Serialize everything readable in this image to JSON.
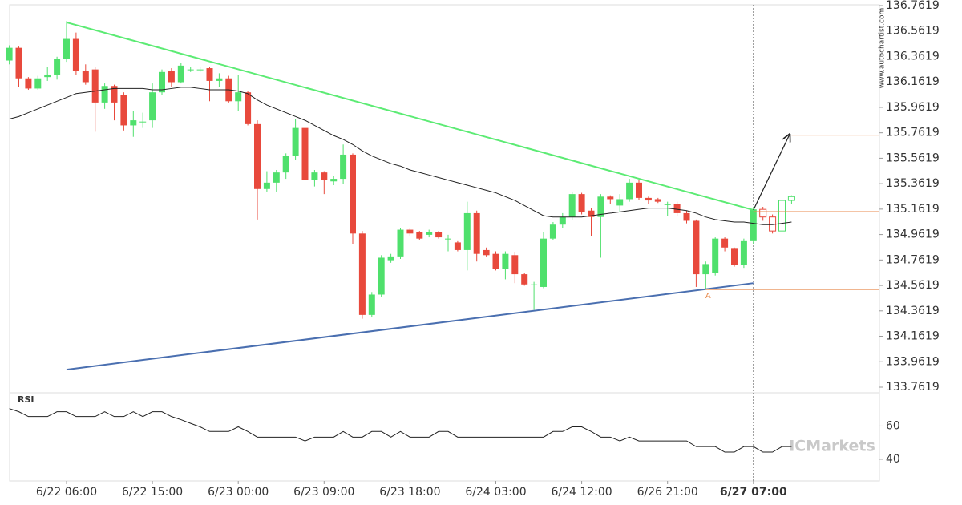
{
  "chart_data": [
    {
      "type": "candlestick",
      "categories": [
        null,
        null,
        null,
        null,
        null,
        null,
        "6/22 06:00",
        null,
        null,
        null,
        null,
        null,
        null,
        null,
        null,
        "6/22 15:00",
        null,
        null,
        null,
        null,
        null,
        null,
        null,
        null,
        "6/23 00:00",
        null,
        null,
        null,
        null,
        null,
        null,
        null,
        null,
        "6/23 09:00",
        null,
        null,
        null,
        null,
        null,
        null,
        null,
        null,
        "6/23 18:00",
        null,
        null,
        null,
        null,
        null,
        null,
        null,
        null,
        "6/24 03:00",
        null,
        null,
        null,
        null,
        null,
        null,
        null,
        null,
        "6/24 12:00",
        null,
        null,
        null,
        null,
        null,
        null,
        null,
        null,
        "6/26 21:00",
        null,
        null,
        null,
        null,
        null,
        null,
        null,
        null,
        "6/27 07:00",
        null,
        null,
        null,
        null
      ],
      "highlight_label_index": 78,
      "open": [
        136.33,
        136.43,
        136.19,
        136.11,
        136.2,
        136.22,
        136.34,
        136.5,
        136.25,
        136.26,
        136.0,
        136.13,
        136.06,
        135.82,
        135.85,
        135.86,
        136.08,
        136.25,
        136.16,
        136.26,
        136.26,
        136.27,
        136.17,
        136.19,
        136.01,
        136.08,
        135.83,
        135.32,
        135.37,
        135.45,
        135.58,
        135.8,
        135.39,
        135.45,
        135.38,
        135.4,
        135.59,
        134.97,
        134.33,
        134.49,
        134.76,
        134.79,
        135.0,
        134.98,
        134.96,
        134.98,
        134.93,
        134.9,
        134.84,
        135.13,
        134.84,
        134.81,
        134.69,
        134.8,
        134.65,
        134.57,
        134.55,
        134.93,
        135.04,
        135.1,
        135.28,
        135.15,
        135.1,
        135.26,
        135.19,
        135.24,
        135.37,
        135.25,
        135.24,
        135.2,
        135.2,
        135.13,
        135.07,
        134.65,
        134.66,
        134.93,
        134.85,
        134.72,
        134.91,
        135.16,
        135.1,
        134.99,
        135.23
      ],
      "high": [
        136.45,
        136.44,
        136.2,
        136.21,
        136.28,
        136.36,
        136.64,
        136.55,
        136.3,
        136.28,
        136.15,
        136.14,
        136.08,
        135.93,
        135.92,
        136.15,
        136.26,
        136.27,
        136.31,
        136.28,
        136.28,
        136.28,
        136.23,
        136.21,
        136.22,
        136.09,
        135.86,
        135.46,
        135.47,
        135.6,
        135.87,
        135.83,
        135.47,
        135.46,
        135.42,
        135.67,
        135.6,
        134.99,
        134.51,
        134.8,
        134.81,
        135.01,
        135.01,
        134.99,
        135.0,
        134.99,
        134.96,
        134.91,
        135.22,
        135.15,
        134.86,
        134.83,
        134.83,
        134.82,
        134.66,
        134.59,
        134.98,
        135.06,
        135.13,
        135.3,
        135.29,
        135.17,
        135.28,
        135.27,
        135.28,
        135.4,
        135.39,
        135.26,
        135.25,
        135.22,
        135.22,
        135.15,
        135.08,
        134.75,
        134.94,
        134.94,
        134.86,
        134.93,
        135.18,
        135.18,
        135.12,
        135.26,
        135.27
      ],
      "low": [
        136.3,
        136.12,
        136.1,
        136.1,
        136.17,
        136.18,
        136.32,
        136.22,
        136.14,
        135.77,
        135.95,
        135.86,
        135.78,
        135.73,
        135.8,
        135.8,
        136.06,
        136.12,
        136.15,
        136.24,
        136.24,
        136.01,
        136.12,
        136.0,
        135.93,
        135.82,
        135.08,
        135.3,
        135.3,
        135.4,
        135.55,
        135.37,
        135.34,
        135.28,
        135.35,
        135.36,
        134.89,
        134.3,
        134.31,
        134.47,
        134.74,
        134.77,
        134.95,
        134.92,
        134.94,
        134.93,
        134.83,
        134.83,
        134.68,
        134.75,
        134.79,
        134.68,
        134.61,
        134.58,
        134.56,
        134.37,
        134.54,
        134.92,
        135.01,
        135.08,
        135.12,
        134.95,
        134.78,
        135.2,
        135.14,
        135.22,
        135.23,
        135.2,
        135.21,
        135.11,
        135.11,
        135.05,
        134.55,
        134.53,
        134.64,
        134.83,
        134.71,
        134.7,
        134.89,
        135.07,
        134.97,
        134.97,
        135.2
      ],
      "close": [
        136.43,
        136.19,
        136.11,
        136.19,
        136.22,
        136.34,
        136.5,
        136.25,
        136.16,
        136.0,
        136.13,
        136.0,
        135.82,
        135.86,
        135.85,
        136.08,
        136.24,
        136.16,
        136.29,
        136.26,
        136.26,
        136.17,
        136.19,
        136.01,
        136.08,
        135.83,
        135.32,
        135.37,
        135.45,
        135.58,
        135.8,
        135.39,
        135.45,
        135.39,
        135.4,
        135.59,
        134.97,
        134.33,
        134.49,
        134.78,
        134.79,
        135.0,
        134.97,
        134.93,
        134.98,
        134.94,
        134.93,
        134.84,
        135.13,
        134.81,
        134.8,
        134.69,
        134.81,
        134.65,
        134.57,
        134.57,
        134.93,
        135.04,
        135.1,
        135.28,
        135.14,
        135.1,
        135.26,
        135.24,
        135.24,
        135.37,
        135.25,
        135.23,
        135.22,
        135.2,
        135.13,
        135.07,
        134.65,
        134.73,
        134.93,
        134.86,
        134.72,
        134.91,
        135.16,
        135.1,
        134.99,
        135.23,
        135.26
      ],
      "up_color": "#4fe06c",
      "down_color": "#e8493c",
      "hollow_from": 79,
      "ma": {
        "color": "#222222",
        "values": [
          135.87,
          135.89,
          135.92,
          135.95,
          135.98,
          136.01,
          136.04,
          136.07,
          136.08,
          136.09,
          136.1,
          136.11,
          136.11,
          136.11,
          136.11,
          136.1,
          136.1,
          136.11,
          136.12,
          136.12,
          136.11,
          136.1,
          136.1,
          136.1,
          136.09,
          136.07,
          136.02,
          135.98,
          135.95,
          135.92,
          135.89,
          135.86,
          135.82,
          135.78,
          135.74,
          135.71,
          135.67,
          135.62,
          135.58,
          135.55,
          135.52,
          135.5,
          135.47,
          135.45,
          135.43,
          135.41,
          135.39,
          135.37,
          135.35,
          135.33,
          135.31,
          135.29,
          135.26,
          135.23,
          135.19,
          135.15,
          135.11,
          135.1,
          135.1,
          135.1,
          135.1,
          135.11,
          135.12,
          135.13,
          135.14,
          135.15,
          135.16,
          135.17,
          135.17,
          135.17,
          135.16,
          135.15,
          135.13,
          135.1,
          135.08,
          135.07,
          135.06,
          135.06,
          135.05,
          135.04,
          135.04,
          135.05,
          135.06
        ]
      },
      "ylim": [
        133.7619,
        136.7619
      ],
      "yticks": [
        136.7619,
        136.5619,
        136.3619,
        136.1619,
        135.9619,
        135.7619,
        135.5619,
        135.3619,
        135.1619,
        134.9619,
        134.7619,
        134.5619,
        134.3619,
        134.1619,
        133.9619,
        133.7619
      ],
      "trendlines": [
        {
          "from": [
            6,
            136.63
          ],
          "to": [
            78,
            135.155
          ],
          "color": "#5ceb74"
        },
        {
          "from": [
            6,
            133.9
          ],
          "to": [
            78,
            134.58
          ],
          "color": "#4a6fb0"
        }
      ],
      "levels": [
        {
          "value": 135.7435,
          "from": 82,
          "color": "#e8894c"
        },
        {
          "value": 135.142,
          "from": 78,
          "color": "#e8894c"
        },
        {
          "value": 134.53,
          "from": 73,
          "color": "#e8894c",
          "label": "A"
        }
      ],
      "arrow": {
        "from": [
          78,
          135.155
        ],
        "to": [
          81.8,
          135.75
        ],
        "color": "#222222"
      },
      "vline_index": 78,
      "watermark": {
        "site": "www.autochartist.com",
        "logo": "ICMarkets"
      }
    },
    {
      "type": "line",
      "title": "RSI",
      "color": "#222222",
      "values": [
        70.5,
        68.6,
        65.7,
        65.7,
        65.7,
        68.6,
        68.6,
        65.7,
        65.7,
        65.7,
        68.6,
        65.7,
        65.7,
        68.6,
        65.7,
        68.6,
        68.6,
        65.7,
        63.8,
        61.6,
        59.5,
        56.7,
        56.7,
        56.7,
        59.5,
        56.7,
        53.3,
        53.3,
        53.3,
        53.3,
        53.3,
        51.0,
        53.3,
        53.3,
        53.3,
        56.7,
        53.3,
        53.3,
        56.7,
        56.7,
        53.3,
        56.7,
        53.3,
        53.3,
        53.3,
        56.7,
        56.7,
        53.3,
        53.3,
        53.3,
        53.3,
        53.3,
        53.3,
        53.3,
        53.3,
        53.3,
        53.3,
        56.7,
        56.7,
        59.5,
        59.5,
        56.7,
        53.3,
        53.3,
        51.0,
        53.3,
        51.0,
        51.0,
        51.0,
        51.0,
        51.0,
        51.0,
        47.6,
        47.6,
        47.6,
        44.3,
        44.3,
        47.6,
        47.6,
        44.3,
        44.3,
        47.6,
        47.6
      ],
      "ylim": [
        25,
        80
      ],
      "yticks": [
        60,
        40
      ]
    }
  ]
}
